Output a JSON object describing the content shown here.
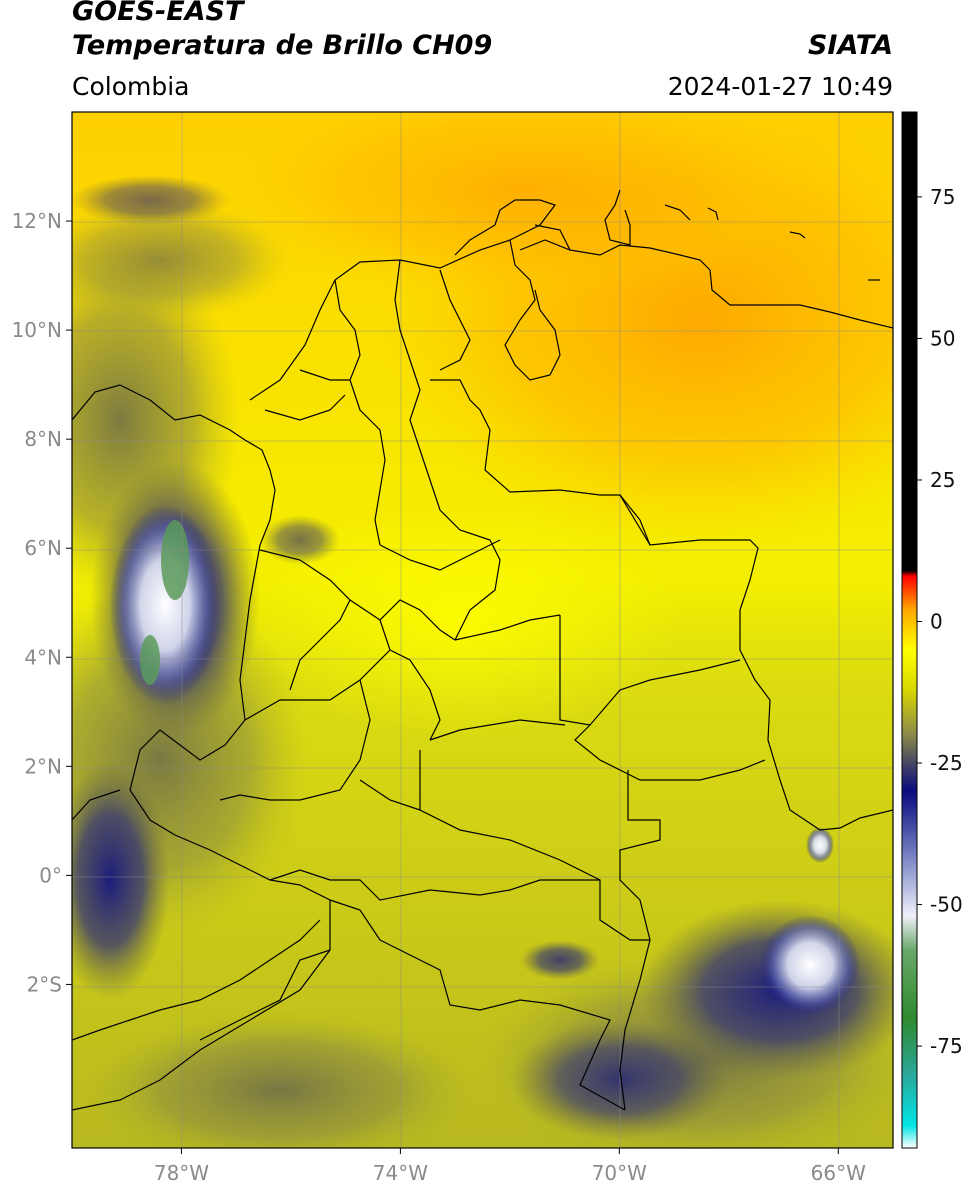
{
  "header": {
    "satellite": "GOES-EAST",
    "product": "Temperatura de Brillo CH09",
    "region": "Colombia",
    "organization": "SIATA",
    "timestamp": "2024-01-27 10:49"
  },
  "map": {
    "lon_range": [
      -80,
      -65
    ],
    "lat_range": [
      -5,
      14
    ],
    "lat_ticks": [
      {
        "value": 12,
        "label": "12°N"
      },
      {
        "value": 10,
        "label": "10°N"
      },
      {
        "value": 8,
        "label": "8°N"
      },
      {
        "value": 6,
        "label": "6°N"
      },
      {
        "value": 4,
        "label": "4°N"
      },
      {
        "value": 2,
        "label": "2°N"
      },
      {
        "value": 0,
        "label": "0°"
      },
      {
        "value": -2,
        "label": "2°S"
      }
    ],
    "lon_ticks": [
      {
        "value": -78,
        "label": "78°W"
      },
      {
        "value": -74,
        "label": "74°W"
      },
      {
        "value": -70,
        "label": "70°W"
      },
      {
        "value": -66,
        "label": "66°W"
      }
    ]
  },
  "colorbar": {
    "range": [
      -93,
      90
    ],
    "ticks": [
      {
        "value": 75,
        "label": "75"
      },
      {
        "value": 50,
        "label": "50"
      },
      {
        "value": 25,
        "label": "25"
      },
      {
        "value": 0,
        "label": "0"
      },
      {
        "value": -25,
        "label": "-25"
      },
      {
        "value": -50,
        "label": "-50"
      },
      {
        "value": -75,
        "label": "-75"
      }
    ],
    "stops": [
      {
        "value": -93,
        "color": "#ffffff"
      },
      {
        "value": -89,
        "color": "#00e5e5"
      },
      {
        "value": -80,
        "color": "#2aa89a"
      },
      {
        "value": -70,
        "color": "#2f8a2f"
      },
      {
        "value": -58,
        "color": "#6aa86a"
      },
      {
        "value": -52,
        "color": "#f0f0f8"
      },
      {
        "value": -45,
        "color": "#a0a8d8"
      },
      {
        "value": -37,
        "color": "#4a54a8"
      },
      {
        "value": -30,
        "color": "#0a0a80"
      },
      {
        "value": -25,
        "color": "#464664"
      },
      {
        "value": -20,
        "color": "#8a8a4a"
      },
      {
        "value": -12,
        "color": "#d8d800"
      },
      {
        "value": -5,
        "color": "#ffff00"
      },
      {
        "value": 2,
        "color": "#ffaa00"
      },
      {
        "value": 8,
        "color": "#ff0000"
      },
      {
        "value": 9,
        "color": "#000000"
      },
      {
        "value": 90,
        "color": "#000000"
      }
    ]
  }
}
